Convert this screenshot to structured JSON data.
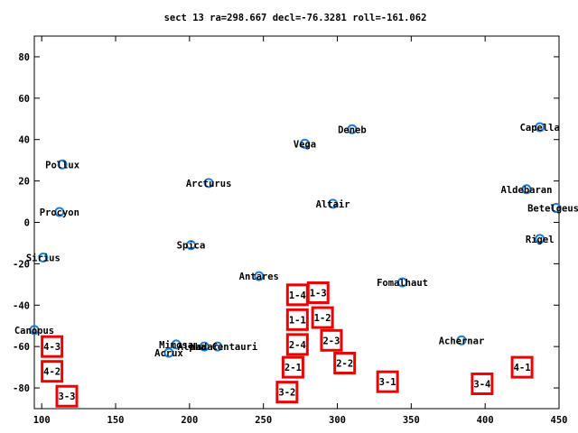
{
  "chart_data": {
    "type": "scatter",
    "title": "sect 13 ra=298.667 decl=-76.3281 roll=-161.062",
    "xlim": [
      95,
      450
    ],
    "ylim": [
      -90,
      90
    ],
    "xticks": [
      100,
      150,
      200,
      250,
      300,
      350,
      400,
      450
    ],
    "yticks": [
      80,
      60,
      40,
      20,
      0,
      -20,
      -40,
      -60,
      -80
    ],
    "grid": false,
    "series": [
      {
        "marker": "circle",
        "color": "#1e7fd6",
        "points": [
          {
            "x": 437,
            "y": 46,
            "label": "Capella"
          },
          {
            "x": 310,
            "y": 45,
            "label": "Deneb"
          },
          {
            "x": 278,
            "y": 38,
            "label": "Vega"
          },
          {
            "x": 114,
            "y": 28,
            "label": "Pollux"
          },
          {
            "x": 213,
            "y": 19,
            "label": "Arcturus"
          },
          {
            "x": 428,
            "y": 16,
            "label": "Aldebaran"
          },
          {
            "x": 297,
            "y": 9,
            "label": "Altair"
          },
          {
            "x": 112,
            "y": 5,
            "label": "Procyon"
          },
          {
            "x": 448,
            "y": 7,
            "label": "Betelgeuse"
          },
          {
            "x": 437,
            "y": -8,
            "label": "Rigel"
          },
          {
            "x": 201,
            "y": -11,
            "label": "Spica"
          },
          {
            "x": 101,
            "y": -17,
            "label": "Sirius"
          },
          {
            "x": 247,
            "y": -26,
            "label": "Antares"
          },
          {
            "x": 344,
            "y": -29,
            "label": "Fomalhaut"
          },
          {
            "x": 95,
            "y": -52,
            "label": "Canopus"
          },
          {
            "x": 384,
            "y": -57,
            "label": "Achernar"
          },
          {
            "x": 191,
            "y": -59,
            "label": "Mimosa"
          },
          {
            "x": 210,
            "y": -60,
            "label": "Hadar"
          },
          {
            "x": 219,
            "y": -60,
            "label": "Alpha Centauri"
          },
          {
            "x": 186,
            "y": -63,
            "label": "Acrux"
          }
        ]
      },
      {
        "marker": "square",
        "color": "#ee0000",
        "points": [
          {
            "x": 287,
            "y": -34,
            "label": "1-3"
          },
          {
            "x": 273,
            "y": -35,
            "label": "1-4"
          },
          {
            "x": 273,
            "y": -47,
            "label": "1-1"
          },
          {
            "x": 290,
            "y": -46,
            "label": "1-2"
          },
          {
            "x": 296,
            "y": -57,
            "label": "2-3"
          },
          {
            "x": 273,
            "y": -59,
            "label": "2-4"
          },
          {
            "x": 107,
            "y": -60,
            "label": "4-3"
          },
          {
            "x": 305,
            "y": -68,
            "label": "2-2"
          },
          {
            "x": 270,
            "y": -70,
            "label": "2-1"
          },
          {
            "x": 107,
            "y": -72,
            "label": "4-2"
          },
          {
            "x": 425,
            "y": -70,
            "label": "4-1"
          },
          {
            "x": 334,
            "y": -77,
            "label": "3-1"
          },
          {
            "x": 398,
            "y": -78,
            "label": "3-4"
          },
          {
            "x": 266,
            "y": -82,
            "label": "3-2"
          },
          {
            "x": 117,
            "y": -84,
            "label": "3-3"
          }
        ]
      }
    ]
  }
}
